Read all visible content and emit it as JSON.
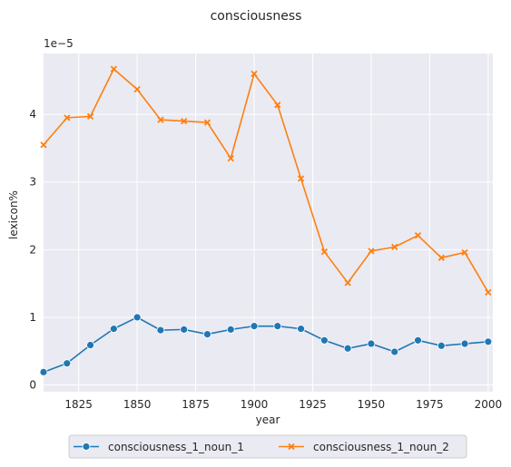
{
  "chart_data": {
    "type": "line",
    "title": "consciousness",
    "xlabel": "year",
    "ylabel": "lexicon%",
    "y_scale_label": "1e−5",
    "xlim": [
      1810,
      2002
    ],
    "ylim": [
      -0.1,
      4.9
    ],
    "grid": true,
    "legend_position": "bottom-center",
    "x_ticks": [
      1825,
      1850,
      1875,
      1900,
      1925,
      1950,
      1975,
      2000
    ],
    "y_ticks": [
      0,
      1,
      2,
      3,
      4
    ],
    "x": [
      1810,
      1820,
      1830,
      1840,
      1850,
      1860,
      1870,
      1880,
      1890,
      1900,
      1910,
      1920,
      1930,
      1940,
      1950,
      1960,
      1970,
      1980,
      1990,
      2000
    ],
    "series": [
      {
        "name": "consciousness_1_noun_1",
        "color": "#1f77b4",
        "marker": "circle",
        "values": [
          0.19,
          0.32,
          0.59,
          0.83,
          1.0,
          0.81,
          0.82,
          0.75,
          0.82,
          0.87,
          0.87,
          0.83,
          0.66,
          0.54,
          0.61,
          0.49,
          0.66,
          0.58,
          0.61,
          0.64
        ]
      },
      {
        "name": "consciousness_1_noun_2",
        "color": "#ff7f0e",
        "marker": "x",
        "values": [
          3.55,
          3.95,
          3.97,
          4.67,
          4.37,
          3.92,
          3.9,
          3.88,
          3.35,
          4.6,
          4.14,
          3.05,
          1.97,
          1.51,
          1.98,
          2.04,
          2.21,
          1.88,
          1.96,
          1.37
        ]
      }
    ]
  }
}
